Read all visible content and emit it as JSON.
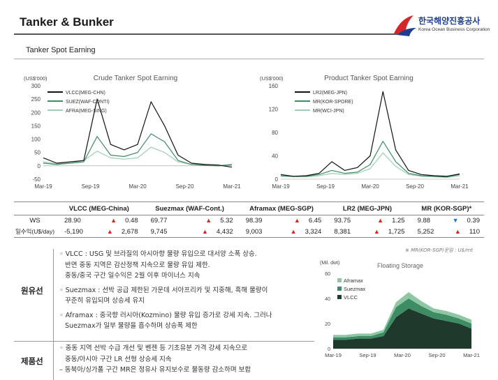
{
  "header": {
    "title": "Tanker & Bunker",
    "logo_korean": "한국해양진흥공사",
    "logo_english": "Korea Ocean Business Corporation",
    "subtitle": "Tanker Spot Earning"
  },
  "charts": {
    "crude": {
      "title": "Crude Tanker Spot Earning",
      "unit": "(US$'000)",
      "y_ticks": [
        "300",
        "250",
        "200",
        "150",
        "100",
        "50",
        "0",
        "-50"
      ],
      "x_ticks": [
        "Mar-19",
        "Sep-19",
        "Mar-20",
        "Sep-20",
        "Mar-21"
      ],
      "legend": [
        "VLCC(MEG-CHN)",
        "SUEZ(WAF-CONTI)",
        "AFRA(MEG-SING)"
      ]
    },
    "product": {
      "title": "Product Tanker Spot Earning",
      "unit": "(US$'000)",
      "y_ticks": [
        "160",
        "120",
        "80",
        "40",
        "0"
      ],
      "x_ticks": [
        "Mar-19",
        "Sep-19",
        "Mar-20",
        "Sep-20",
        "Mar-21"
      ],
      "legend": [
        "LR2(MEG-JPN)",
        "MR(KOR-SPORE)",
        "MR(WCI-JPN)"
      ]
    },
    "floating": {
      "title": "Floating Storage",
      "unit": "(Mil. dwt)",
      "y_ticks": [
        "60",
        "40",
        "20",
        "0"
      ],
      "x_ticks": [
        "Mar-19",
        "Sep-19",
        "Mar-20",
        "Sep-20",
        "Mar-21"
      ],
      "legend": [
        "Aframax",
        "Suezmax",
        "VLCC"
      ]
    }
  },
  "chart_data": [
    {
      "type": "line",
      "title": "Crude Tanker Spot Earning",
      "ylabel": "(US$'000)",
      "ylim": [
        -50,
        300
      ],
      "x": [
        "Mar-19",
        "May-19",
        "Jul-19",
        "Sep-19",
        "Oct-19",
        "Nov-19",
        "Jan-20",
        "Mar-20",
        "Apr-20",
        "May-20",
        "Jul-20",
        "Sep-20",
        "Nov-20",
        "Jan-21",
        "Mar-21"
      ],
      "series": [
        {
          "name": "VLCC(MEG-CHN)",
          "color": "#111111",
          "values": [
            30,
            10,
            15,
            20,
            250,
            80,
            60,
            80,
            240,
            150,
            40,
            10,
            5,
            3,
            -5
          ]
        },
        {
          "name": "SUEZ(WAF-CONTI)",
          "color": "#3d8c63",
          "values": [
            10,
            5,
            10,
            15,
            110,
            40,
            35,
            50,
            120,
            90,
            20,
            5,
            2,
            0,
            5
          ]
        },
        {
          "name": "AFRA(MEG-SING)",
          "color": "#9fcfb2",
          "values": [
            15,
            8,
            10,
            20,
            55,
            30,
            25,
            30,
            70,
            50,
            15,
            5,
            3,
            0,
            3
          ]
        }
      ]
    },
    {
      "type": "line",
      "title": "Product Tanker Spot Earning",
      "ylabel": "(US$'000)",
      "ylim": [
        0,
        160
      ],
      "x": [
        "Mar-19",
        "May-19",
        "Jul-19",
        "Sep-19",
        "Oct-19",
        "Nov-19",
        "Jan-20",
        "Mar-20",
        "Apr-20",
        "May-20",
        "Jul-20",
        "Sep-20",
        "Nov-20",
        "Jan-21",
        "Mar-21"
      ],
      "series": [
        {
          "name": "LR2(MEG-JPN)",
          "color": "#111111",
          "values": [
            8,
            5,
            6,
            10,
            30,
            15,
            20,
            40,
            150,
            50,
            15,
            8,
            6,
            5,
            9
          ]
        },
        {
          "name": "MR(KOR-SPORE)",
          "color": "#3d8c63",
          "values": [
            6,
            5,
            5,
            8,
            15,
            10,
            12,
            25,
            65,
            30,
            10,
            6,
            5,
            4,
            8
          ]
        },
        {
          "name": "MR(WCI-JPN)",
          "color": "#9fcfb2",
          "values": [
            5,
            4,
            4,
            6,
            10,
            8,
            10,
            18,
            45,
            22,
            8,
            5,
            4,
            3,
            6
          ]
        }
      ]
    },
    {
      "type": "area",
      "title": "Floating Storage",
      "ylabel": "(Mil. dwt)",
      "ylim": [
        0,
        60
      ],
      "x": [
        "Mar-19",
        "Jun-19",
        "Sep-19",
        "Dec-19",
        "Mar-20",
        "Apr-20",
        "May-20",
        "Jul-20",
        "Sep-20",
        "Nov-20",
        "Jan-21",
        "Mar-21"
      ],
      "series": [
        {
          "name": "VLCC",
          "color": "#1f3a2c",
          "values": [
            7,
            7,
            8,
            8,
            10,
            25,
            32,
            28,
            24,
            22,
            20,
            16
          ]
        },
        {
          "name": "Suezmax",
          "color": "#3d8c63",
          "values": [
            2,
            2,
            2,
            2,
            3,
            8,
            8,
            6,
            5,
            5,
            4,
            4
          ]
        },
        {
          "name": "Aframax",
          "color": "#8fc7a5",
          "values": [
            2,
            2,
            2,
            2,
            2,
            4,
            5,
            4,
            3,
            3,
            3,
            3
          ]
        }
      ]
    }
  ],
  "table": {
    "columns": [
      "",
      "VLCC (MEG-China)",
      "Suezmax (WAF-Cont.)",
      "Aframax (MEG-SGP)",
      "LR2 (MEG-JPN)",
      "MR (KOR-SGP)*"
    ],
    "rows": [
      {
        "label": "WS",
        "cells": [
          {
            "value": "28.90",
            "change": "0.48",
            "dir": "up"
          },
          {
            "value": "69.77",
            "change": "5.32",
            "dir": "up"
          },
          {
            "value": "98.39",
            "change": "6.45",
            "dir": "up"
          },
          {
            "value": "93.75",
            "change": "1.25",
            "dir": "up"
          },
          {
            "value": "9.88",
            "change": "0.39",
            "dir": "dn"
          }
        ]
      },
      {
        "label": "일수익(U$/day)",
        "cells": [
          {
            "value": "-5,190",
            "change": "2,678",
            "dir": "up"
          },
          {
            "value": "9,745",
            "change": "4,432",
            "dir": "up"
          },
          {
            "value": "9,003",
            "change": "3,324",
            "dir": "up"
          },
          {
            "value": "8,381",
            "change": "1,725",
            "dir": "up"
          },
          {
            "value": "5,252",
            "change": "110",
            "dir": "up"
          }
        ]
      }
    ],
    "note": "※ MR(KOR-SGP)운임 : U$/mt"
  },
  "sections": {
    "crude_label": "원유선",
    "crude_lines": [
      "◦ VLCC : USG 및 브라질의 아시아향 물량 유입으로 대서양 소폭 상승.",
      "반면 중동 지역은 감산정책 지속으로 물량 유입 제한.",
      "중동/중국 구간 일수익은 2월 이후 마이너스 지속",
      "◦ Suezmax : 선박 공급 제한된 가운데 서아프리카 및 지중해, 흑해 물량이",
      "꾸준히 유입되며 상승세 유지",
      "◦ Aframax : 중국향 러시아(Kozmino) 물량 유입 증가로 강세 지속. 그러나",
      "Suezmax가 일부 물량을 흡수하며 상승폭 제한"
    ],
    "product_label": "제품선",
    "product_lines": [
      "◦ 중동 지역 선박 수급 개선 및 벤젠 등 기초유분 가격 강세 지속으로",
      "중동/아시아 구간 LR 선형 상승세 지속",
      "– 동북아/싱가폴 구간 MR은 정유사 유지보수로 물동량 감소하며 보합"
    ]
  }
}
